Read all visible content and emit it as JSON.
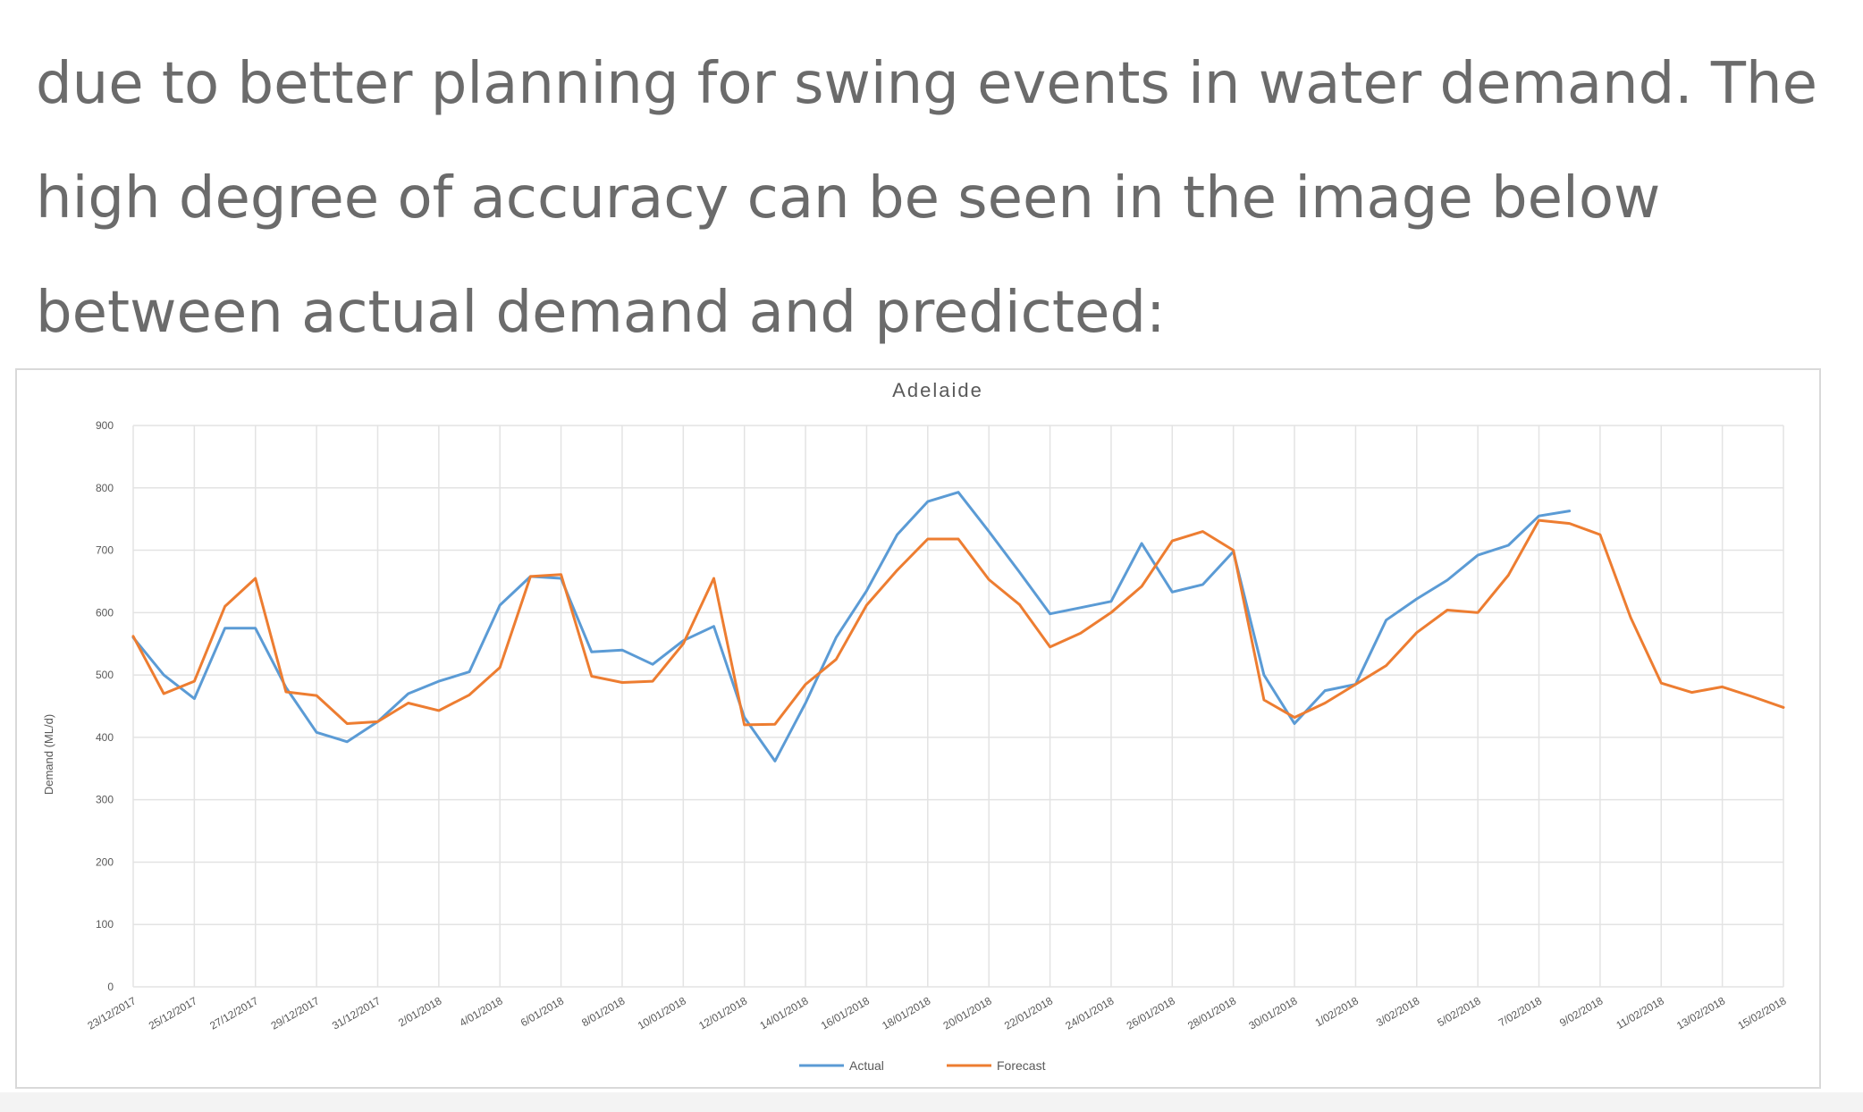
{
  "paragraph": {
    "lines": [
      "due to better planning for swing events in water demand. The",
      "high degree of accuracy can be seen in the image below",
      "between actual demand and predicted:"
    ]
  },
  "colors": {
    "actual": "#5b9bd5",
    "forecast": "#ed7d31",
    "grid": "#e3e3e3",
    "text": "#6b6b6b"
  },
  "chart_data": {
    "type": "line",
    "title": "Adelaide",
    "xlabel": "",
    "ylabel": "Demand (ML/d)",
    "ylim": [
      0,
      900
    ],
    "yticks": [
      0,
      100,
      200,
      300,
      400,
      500,
      600,
      700,
      800,
      900
    ],
    "grid": true,
    "legend_position": "bottom",
    "x_tick_labels": [
      "23/12/2017",
      "25/12/2017",
      "27/12/2017",
      "29/12/2017",
      "31/12/2017",
      "2/01/2018",
      "4/01/2018",
      "6/01/2018",
      "8/01/2018",
      "10/01/2018",
      "12/01/2018",
      "14/01/2018",
      "16/01/2018",
      "18/01/2018",
      "20/01/2018",
      "22/01/2018",
      "24/01/2018",
      "26/01/2018",
      "28/01/2018",
      "30/01/2018",
      "1/02/2018",
      "3/02/2018",
      "5/02/2018",
      "7/02/2018",
      "9/02/2018",
      "11/02/2018",
      "13/02/2018",
      "15/02/2018"
    ],
    "x": [
      "23/12/2017",
      "24/12/2017",
      "25/12/2017",
      "26/12/2017",
      "27/12/2017",
      "28/12/2017",
      "29/12/2017",
      "30/12/2017",
      "31/12/2017",
      "1/01/2018",
      "2/01/2018",
      "3/01/2018",
      "4/01/2018",
      "5/01/2018",
      "6/01/2018",
      "7/01/2018",
      "8/01/2018",
      "9/01/2018",
      "10/01/2018",
      "11/01/2018",
      "12/01/2018",
      "13/01/2018",
      "14/01/2018",
      "15/01/2018",
      "16/01/2018",
      "17/01/2018",
      "18/01/2018",
      "19/01/2018",
      "20/01/2018",
      "21/01/2018",
      "22/01/2018",
      "23/01/2018",
      "24/01/2018",
      "25/01/2018",
      "26/01/2018",
      "27/01/2018",
      "28/01/2018",
      "29/01/2018",
      "30/01/2018",
      "31/01/2018",
      "1/02/2018",
      "2/02/2018",
      "3/02/2018",
      "4/02/2018",
      "5/02/2018",
      "6/02/2018",
      "7/02/2018",
      "8/02/2018",
      "9/02/2018",
      "10/02/2018",
      "11/02/2018",
      "12/02/2018",
      "13/02/2018",
      "14/02/2018",
      "15/02/2018"
    ],
    "series": [
      {
        "name": "Actual",
        "values": [
          560,
          500,
          462,
          575,
          575,
          480,
          408,
          393,
          425,
          470,
          490,
          505,
          612,
          658,
          655,
          537,
          540,
          517,
          555,
          578,
          432,
          362,
          455,
          560,
          635,
          725,
          778,
          793,
          730,
          665,
          598,
          608,
          618,
          711,
          633,
          645,
          698,
          500,
          422,
          475,
          485,
          588,
          622,
          652,
          692,
          708,
          755,
          763,
          null,
          null,
          null,
          null,
          null,
          null,
          null
        ]
      },
      {
        "name": "Forecast",
        "values": [
          562,
          470,
          490,
          610,
          655,
          473,
          467,
          422,
          425,
          455,
          443,
          468,
          512,
          658,
          661,
          498,
          488,
          490,
          550,
          655,
          420,
          421,
          485,
          525,
          612,
          668,
          718,
          718,
          653,
          613,
          545,
          567,
          600,
          642,
          715,
          730,
          700,
          460,
          432,
          455,
          485,
          515,
          568,
          604,
          600,
          660,
          748,
          743,
          725,
          592,
          487,
          472,
          481,
          465,
          448
        ]
      }
    ]
  }
}
